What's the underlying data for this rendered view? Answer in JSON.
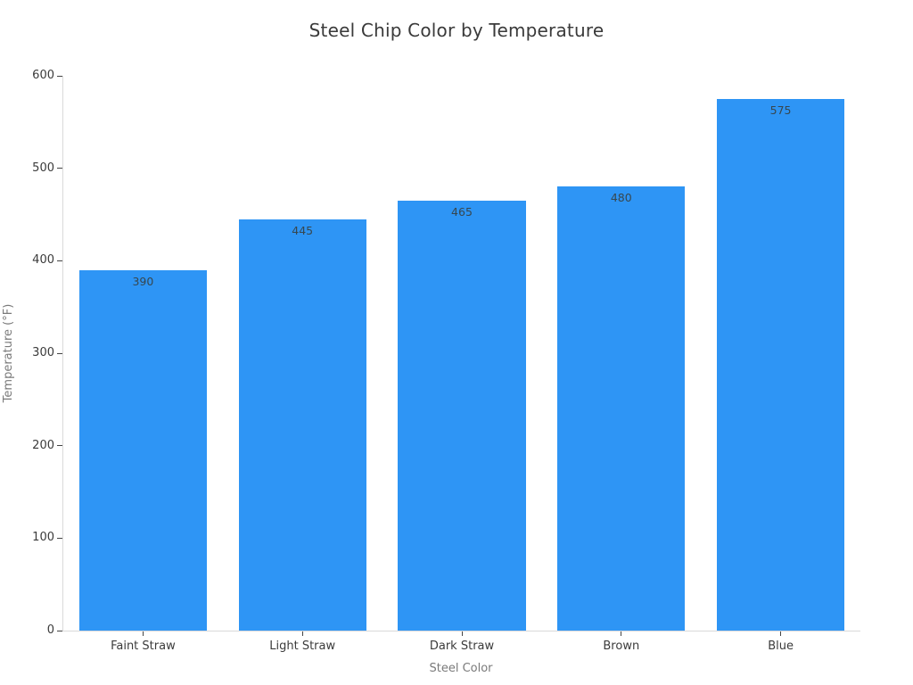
{
  "chart_data": {
    "type": "bar",
    "title": "Steel Chip Color by Temperature",
    "categories": [
      "Faint Straw",
      "Light Straw",
      "Dark Straw",
      "Brown",
      "Blue"
    ],
    "values": [
      390,
      445,
      465,
      480,
      575
    ],
    "value_labels": [
      "390",
      "445",
      "465",
      "480",
      "575"
    ],
    "xlabel": "Steel Color",
    "ylabel": "Temperature (°F)",
    "ylim": [
      0,
      600
    ],
    "yticks": [
      0,
      100,
      200,
      300,
      400,
      500,
      600
    ],
    "grid": false,
    "legend": "none",
    "bar_color": "#2E95F5"
  },
  "colors": {
    "background": "#ffffff",
    "bar": "#2E95F5",
    "title_text": "#3a3a3a",
    "tick_text": "#3b3b3b",
    "axis_title_text": "#7a7a7a",
    "axis_line": "#d9d9d9",
    "tick_mark": "#444444",
    "bar_value_text": "#37474f"
  }
}
